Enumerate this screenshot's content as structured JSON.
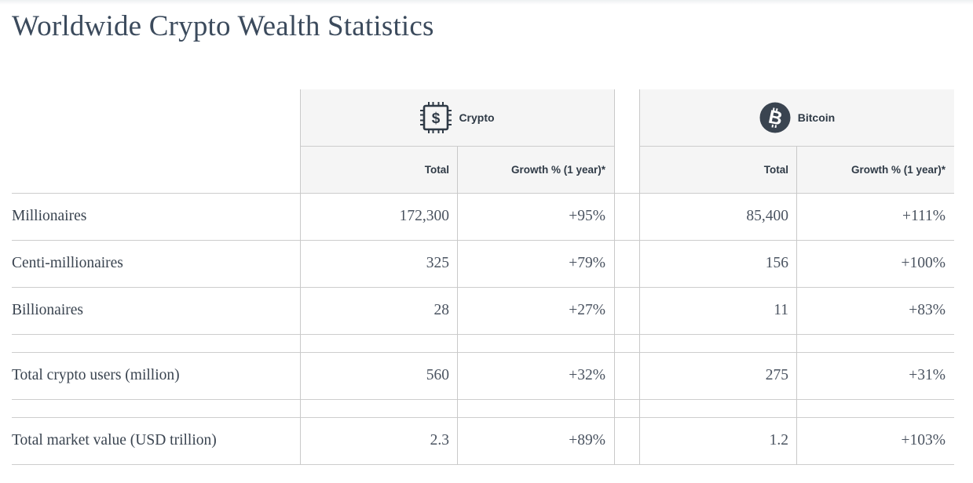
{
  "title": "Worldwide Crypto Wealth Statistics",
  "groups": {
    "crypto": {
      "label": "Crypto",
      "icon": "crypto-chip-dollar-icon"
    },
    "bitcoin": {
      "label": "Bitcoin",
      "icon": "bitcoin-icon"
    }
  },
  "columns": {
    "total": "Total",
    "growth": "Growth % (1 year)*"
  },
  "rows": [
    {
      "label": "Millionaires",
      "crypto_total": "172,300",
      "crypto_growth": "+95%",
      "btc_total": "85,400",
      "btc_growth": "+111%"
    },
    {
      "label": "Centi-millionaires",
      "crypto_total": "325",
      "crypto_growth": "+79%",
      "btc_total": "156",
      "btc_growth": "+100%"
    },
    {
      "label": "Billionaires",
      "crypto_total": "28",
      "crypto_growth": "+27%",
      "btc_total": "11",
      "btc_growth": "+83%"
    },
    {
      "label": "Total crypto users (million)",
      "crypto_total": "560",
      "crypto_growth": "+32%",
      "btc_total": "275",
      "btc_growth": "+31%"
    },
    {
      "label": "Total market value (USD trillion)",
      "crypto_total": "2.3",
      "crypto_growth": "+89%",
      "btc_total": "1.2",
      "btc_growth": "+103%"
    }
  ],
  "colors": {
    "header_bg": "#f5f5f5",
    "title": "#3b4a5c",
    "grid": "#cdcdcd",
    "bitcoin_icon_bg": "#3a4450"
  }
}
